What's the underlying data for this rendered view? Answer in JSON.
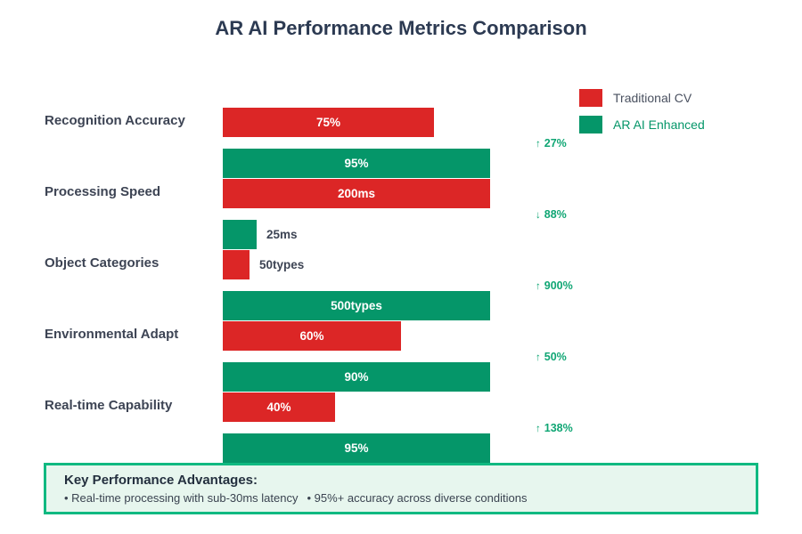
{
  "colors": {
    "traditional_red": "#dc2626",
    "enhanced_green": "#059669",
    "annotation_green": "#10a674",
    "note_border_green": "#10b981",
    "note_background": "#e7f6ee",
    "dark_text": "#3d4454",
    "title_text": "#2c3a52"
  },
  "chart_data": {
    "type": "bar",
    "orientation": "horizontal",
    "title": "AR AI Performance Metrics Comparison",
    "categories": [
      "Recognition Accuracy",
      "Processing Speed",
      "Object Categories",
      "Environmental Adapt",
      "Real-time Capability"
    ],
    "series": [
      {
        "name": "Traditional CV",
        "color": "#dc2626",
        "values": [
          75,
          200,
          50,
          60,
          40
        ],
        "value_labels": [
          "75%",
          "200ms",
          "50types",
          "60%",
          "40%"
        ]
      },
      {
        "name": "AR AI Enhanced",
        "color": "#059669",
        "values": [
          95,
          25,
          500,
          90,
          95
        ],
        "value_labels": [
          "95%",
          "25ms",
          "500types",
          "90%",
          "95%"
        ]
      }
    ],
    "improvements": [
      {
        "direction": "up",
        "label": "27%"
      },
      {
        "direction": "down",
        "label": "88%"
      },
      {
        "direction": "up",
        "label": "900%"
      },
      {
        "direction": "up",
        "label": "50%"
      },
      {
        "direction": "up",
        "label": "138%"
      }
    ],
    "legend_position": "top-right",
    "axes": "none",
    "grid": false
  },
  "legend": {
    "items": [
      {
        "label": "Traditional CV",
        "color": "#dc2626",
        "text_color": "#4a5160"
      },
      {
        "label": "AR AI Enhanced",
        "color": "#059669",
        "text_color": "#059669"
      }
    ]
  },
  "note": {
    "heading": "Key Performance Advantages:",
    "bullet_char": "•",
    "bullets": [
      "Real-time processing with sub-30ms latency",
      "95%+ accuracy across diverse conditions"
    ]
  }
}
